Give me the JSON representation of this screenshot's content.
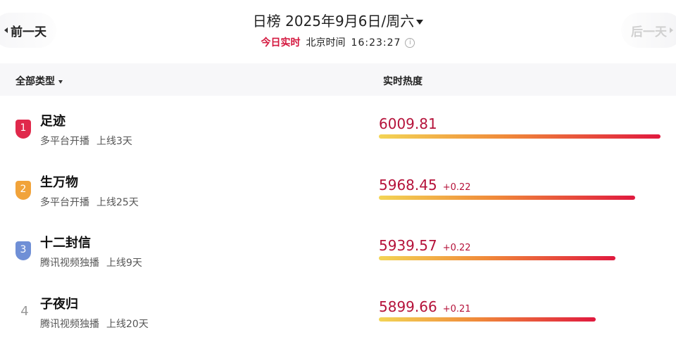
{
  "nav": {
    "prev_label": "前一天",
    "next_label": "后一天"
  },
  "header": {
    "chart_name": "日榜",
    "date": "2025年9月6日/周六",
    "live_label": "今日实时",
    "tz_label": "北京时间",
    "time": "16:23:27",
    "info_icon": "info-icon"
  },
  "columns": {
    "type_filter": "全部类型",
    "heat": "实时热度"
  },
  "colors": {
    "rank1": "#e0284b",
    "rank2": "#f1a33a",
    "rank3": "#6f8fd6",
    "score": "#b5123a"
  },
  "rows": [
    {
      "rank": "1",
      "name": "足迹",
      "platform": "多平台开播",
      "online": "上线3天",
      "score": "6009.81",
      "delta": "",
      "bar_fill": 1.0
    },
    {
      "rank": "2",
      "name": "生万物",
      "platform": "多平台开播",
      "online": "上线25天",
      "score": "5968.45",
      "delta": "+0.22",
      "bar_fill": 0.91
    },
    {
      "rank": "3",
      "name": "十二封信",
      "platform": "腾讯视频独播",
      "online": "上线9天",
      "score": "5939.57",
      "delta": "+0.22",
      "bar_fill": 0.84
    },
    {
      "rank": "4",
      "name": "子夜归",
      "platform": "腾讯视频独播",
      "online": "上线20天",
      "score": "5899.66",
      "delta": "+0.21",
      "bar_fill": 0.77
    }
  ]
}
